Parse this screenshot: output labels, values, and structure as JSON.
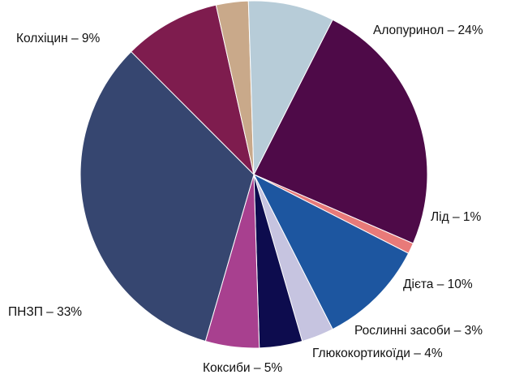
{
  "chart_data": {
    "type": "pie",
    "start_angle_deg": 27,
    "direction": "clockwise",
    "slices": [
      {
        "label": "Алопуринол – 24%",
        "value": 24,
        "color": "#4e0a48"
      },
      {
        "label": "Лід – 1%",
        "value": 1,
        "color": "#e87a79"
      },
      {
        "label": "Дієта – 10%",
        "value": 10,
        "color": "#1d56a0"
      },
      {
        "label": "Рослинні засоби – 3%",
        "value": 3,
        "color": "#c6c4e0"
      },
      {
        "label": "Глюкокортикоїди – 4%",
        "value": 4,
        "color": "#0d0c4e"
      },
      {
        "label": "Коксиби – 5%",
        "value": 5,
        "color": "#a8408f"
      },
      {
        "label": "ПНЗП – 33%",
        "value": 33,
        "color": "#364670"
      },
      {
        "label": "Колхіцин – 9%",
        "value": 9,
        "color": "#7e1c4e"
      },
      {
        "label": "",
        "value": 3,
        "color": "#c9a98a"
      },
      {
        "label": "",
        "value": 8,
        "color": "#b7ccd8"
      }
    ]
  }
}
